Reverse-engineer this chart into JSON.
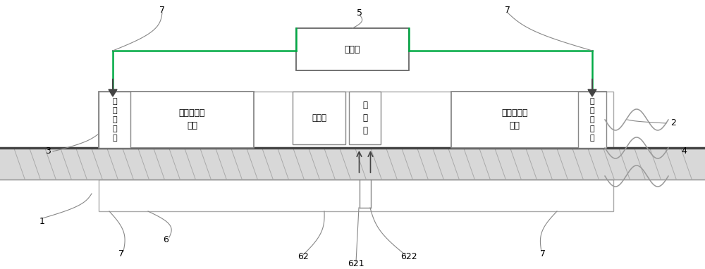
{
  "bg_color": "#ffffff",
  "line_color": "#888888",
  "dark_color": "#444444",
  "green_color": "#00aa44",
  "box_border": "#888888",
  "labels": {
    "综控阀": "综控阀",
    "第一气控阀": "第\n一\n气\n控\n阀",
    "第一速度测控箱": "第一速度测\n控箱",
    "第二气控阀": "第\n二\n气\n控\n阀",
    "第二速度测控箱": "第二速度测\n控箱",
    "挡车器": "挡车器",
    "执行器": "执\n行\n器"
  }
}
